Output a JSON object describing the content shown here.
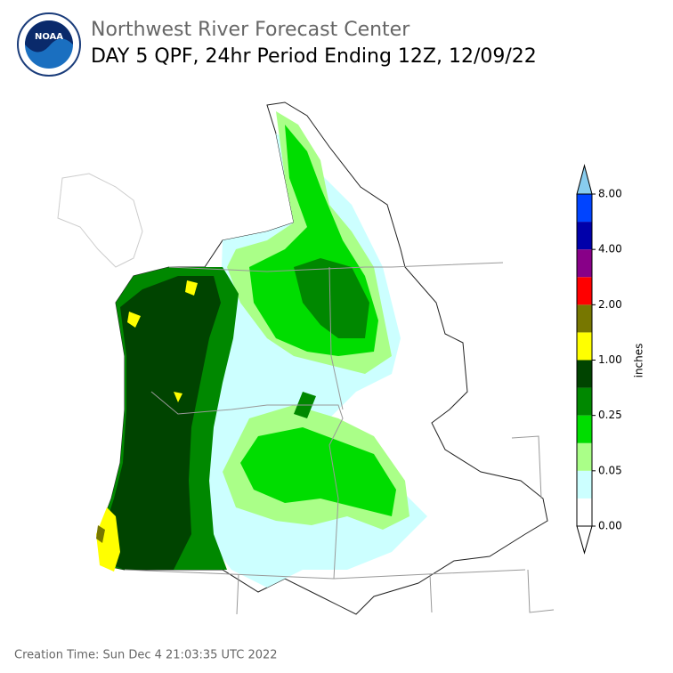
{
  "header": {
    "title": "Northwest River Forecast Center",
    "subtitle": "DAY 5 QPF, 24hr Period Ending 12Z, 12/09/22"
  },
  "logo": {
    "text": "NOAA"
  },
  "colorbar": {
    "label": "inches",
    "ticks": [
      "0.00",
      "0.05",
      "0.25",
      "1.00",
      "2.00",
      "4.00",
      "8.00"
    ],
    "colors": [
      "#ffffff",
      "#ccffff",
      "#aaff88",
      "#00dd00",
      "#008800",
      "#004400",
      "#ffff00",
      "#777700",
      "#ff0000",
      "#880088",
      "#0000aa",
      "#0044ff"
    ],
    "under_color": "#ffffff",
    "over_color": "#88ccee"
  },
  "footer": {
    "creation_time": "Creation Time: Sun Dec 4 21:03:35 UTC 2022"
  }
}
